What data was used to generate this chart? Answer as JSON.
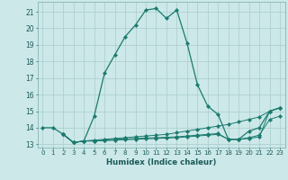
{
  "xlabel": "Humidex (Indice chaleur)",
  "background_color": "#cce8e8",
  "grid_color": "#aacccc",
  "line_color": "#1a7a6e",
  "xlim": [
    -0.5,
    23.5
  ],
  "ylim": [
    12.8,
    21.6
  ],
  "yticks": [
    13,
    14,
    15,
    16,
    17,
    18,
    19,
    20,
    21
  ],
  "xticks": [
    0,
    1,
    2,
    3,
    4,
    5,
    6,
    7,
    8,
    9,
    10,
    11,
    12,
    13,
    14,
    15,
    16,
    17,
    18,
    19,
    20,
    21,
    22,
    23
  ],
  "series1_x": [
    0,
    1,
    2,
    3,
    4,
    5,
    6,
    7,
    8,
    9,
    10,
    11,
    12,
    13,
    14,
    15,
    16,
    17,
    18,
    19,
    20,
    21,
    22,
    23
  ],
  "series1_y": [
    14.0,
    14.0,
    13.6,
    13.1,
    13.2,
    14.7,
    17.3,
    18.4,
    19.5,
    20.2,
    21.1,
    21.2,
    20.6,
    21.1,
    19.1,
    16.6,
    15.3,
    14.8,
    13.3,
    13.3,
    13.8,
    14.0,
    15.0,
    15.2
  ],
  "series2_x": [
    2,
    3,
    4,
    5,
    6,
    7,
    8,
    9,
    10,
    11,
    12,
    13,
    14,
    15,
    16,
    17,
    18,
    19,
    20,
    21,
    22,
    23
  ],
  "series2_y": [
    13.6,
    13.1,
    13.2,
    13.25,
    13.3,
    13.35,
    13.4,
    13.45,
    13.5,
    13.55,
    13.6,
    13.7,
    13.8,
    13.9,
    14.0,
    14.1,
    14.2,
    14.35,
    14.5,
    14.65,
    15.0,
    15.2
  ],
  "series3_x": [
    2,
    3,
    4,
    5,
    6,
    7,
    8,
    9,
    10,
    11,
    12,
    13,
    14,
    15,
    16,
    17,
    18,
    19,
    20,
    21,
    22,
    23
  ],
  "series3_y": [
    13.6,
    13.1,
    13.2,
    13.2,
    13.25,
    13.3,
    13.32,
    13.35,
    13.38,
    13.4,
    13.42,
    13.45,
    13.5,
    13.55,
    13.6,
    13.65,
    13.3,
    13.3,
    13.4,
    13.55,
    14.5,
    14.7
  ],
  "series4_x": [
    2,
    3,
    4,
    5,
    6,
    7,
    8,
    9,
    10,
    11,
    12,
    13,
    14,
    15,
    16,
    17,
    18,
    19,
    20,
    21,
    22,
    23
  ],
  "series4_y": [
    13.6,
    13.1,
    13.2,
    13.2,
    13.22,
    13.25,
    13.28,
    13.3,
    13.33,
    13.35,
    13.38,
    13.4,
    13.45,
    13.5,
    13.55,
    13.6,
    13.3,
    13.3,
    13.35,
    13.45,
    15.0,
    15.2
  ]
}
